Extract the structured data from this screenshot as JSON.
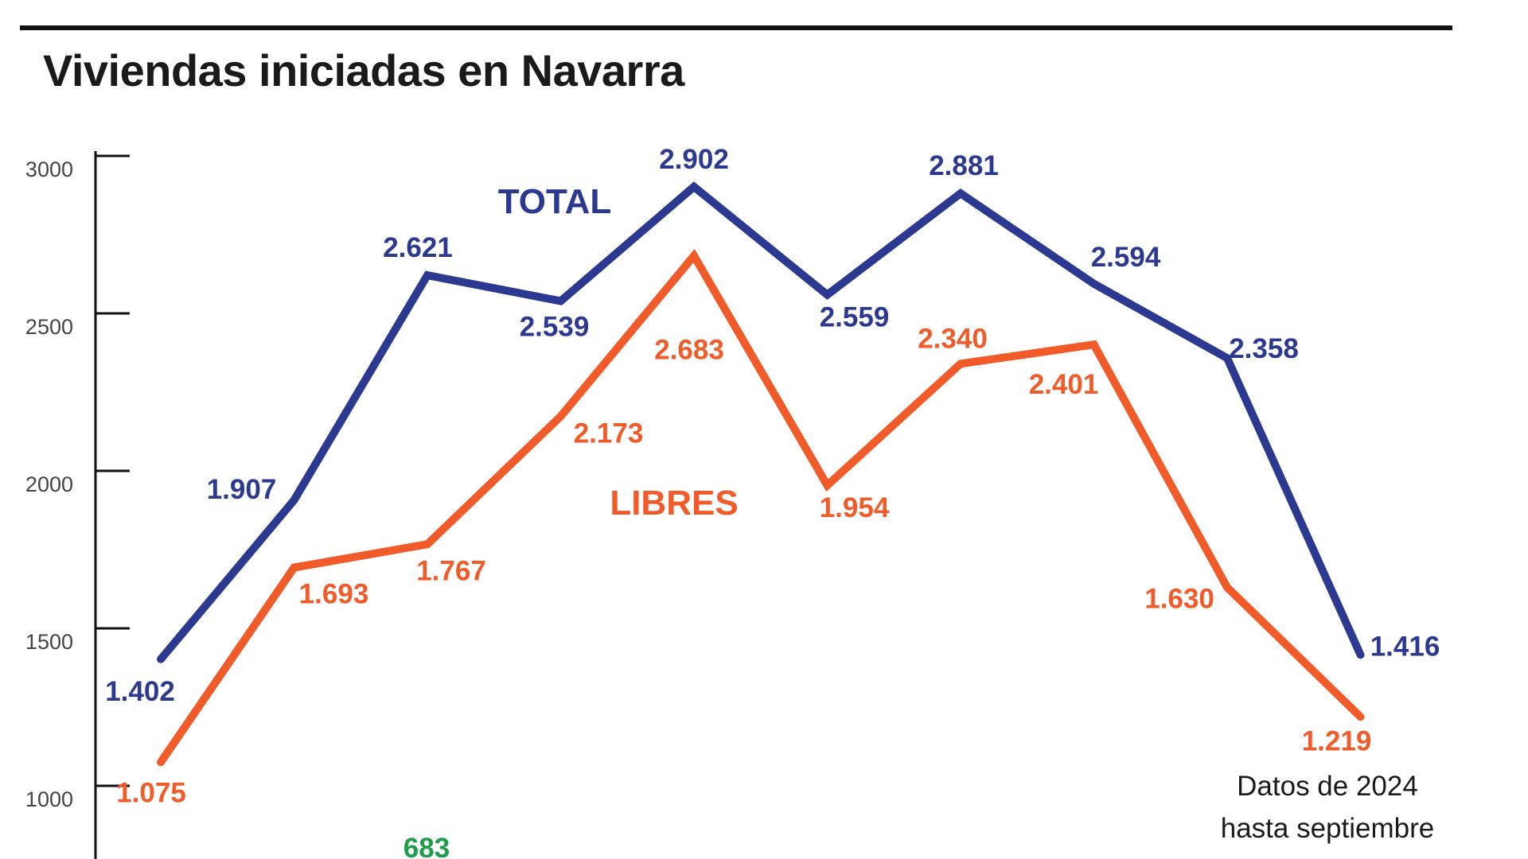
{
  "title": "Viviendas iniciadas en Navarra",
  "chart_data": {
    "type": "line",
    "x": [
      "1",
      "2",
      "3",
      "4",
      "5",
      "6",
      "7",
      "8",
      "9",
      "10"
    ],
    "ylim": [
      900,
      3000
    ],
    "yticks": [
      {
        "value": 3000,
        "label": "3000"
      },
      {
        "value": 2500,
        "label": "2500"
      },
      {
        "value": 2000,
        "label": "2000"
      },
      {
        "value": 1500,
        "label": "1500"
      },
      {
        "value": 1000,
        "label": "1000"
      }
    ],
    "grid": false,
    "series": [
      {
        "name": "TOTAL",
        "color": "#2b3990",
        "values": [
          1402,
          1907,
          2621,
          2539,
          2902,
          2559,
          2881,
          2594,
          2358,
          1416
        ],
        "labels": [
          "1.402",
          "1.907",
          "2.621",
          "2.539",
          "2.902",
          "2.559",
          "2.881",
          "2.594",
          "2.358",
          "1.416"
        ]
      },
      {
        "name": "LIBRES",
        "color": "#f15a29",
        "values": [
          1075,
          1693,
          1767,
          2173,
          2683,
          1954,
          2340,
          2401,
          1630,
          1219
        ],
        "labels": [
          "1.075",
          "1.693",
          "1.767",
          "2.173",
          "2.683",
          "1.954",
          "2.340",
          "2.401",
          "1.630",
          "1.219"
        ]
      }
    ],
    "extra_label": {
      "text": "683",
      "color": "#1e9e4a"
    },
    "annotation": {
      "line1": "Datos de 2024",
      "line2": "hasta septiembre"
    }
  }
}
